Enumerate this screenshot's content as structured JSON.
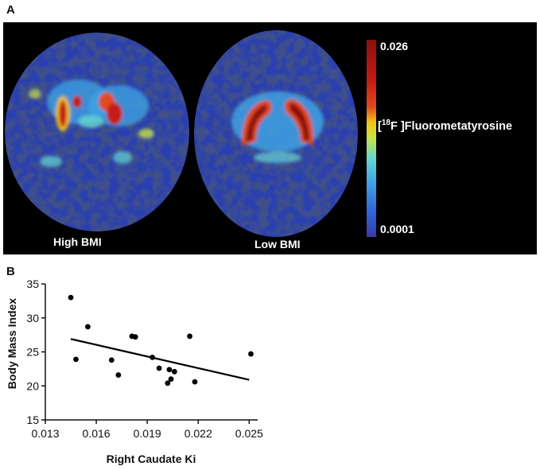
{
  "panel_a": {
    "letter": "A",
    "left_scan_label": "High BMI",
    "right_scan_label": "Low BMI",
    "colorbar": {
      "max_label": "0.026",
      "min_label": "0.0001",
      "title_prefix": "[",
      "title_superscript": "18",
      "title_suffix": "F ]Fluorometatyrosine",
      "colors": [
        "#3a3aa8",
        "#2f63d8",
        "#3fa6e6",
        "#67d8d0",
        "#c8e24a",
        "#f3c318",
        "#e24a1c",
        "#c41a12",
        "#8a1010"
      ]
    }
  },
  "panel_b": {
    "letter": "B"
  },
  "chart_data": {
    "type": "scatter",
    "xlabel": "Right Caudate Ki",
    "ylabel": "Body Mass Index",
    "xlim": [
      0.013,
      0.0255
    ],
    "ylim": [
      15,
      35
    ],
    "xticks": [
      "0.013",
      "0.016",
      "0.019",
      "0.022",
      "0.025"
    ],
    "yticks": [
      "15",
      "20",
      "25",
      "30",
      "35"
    ],
    "points": [
      {
        "x": 0.0145,
        "y": 33.0
      },
      {
        "x": 0.0148,
        "y": 23.9
      },
      {
        "x": 0.0155,
        "y": 28.7
      },
      {
        "x": 0.0169,
        "y": 23.8
      },
      {
        "x": 0.0173,
        "y": 21.6
      },
      {
        "x": 0.0181,
        "y": 27.3
      },
      {
        "x": 0.0183,
        "y": 27.2
      },
      {
        "x": 0.0193,
        "y": 24.2
      },
      {
        "x": 0.0197,
        "y": 22.6
      },
      {
        "x": 0.0202,
        "y": 20.4
      },
      {
        "x": 0.0203,
        "y": 22.4
      },
      {
        "x": 0.0204,
        "y": 21.0
      },
      {
        "x": 0.0206,
        "y": 22.1
      },
      {
        "x": 0.0215,
        "y": 27.3
      },
      {
        "x": 0.0218,
        "y": 20.6
      },
      {
        "x": 0.0251,
        "y": 24.7
      }
    ],
    "fit_line": {
      "x": [
        0.0145,
        0.025
      ],
      "y": [
        26.9,
        20.9
      ]
    },
    "grid": false
  }
}
